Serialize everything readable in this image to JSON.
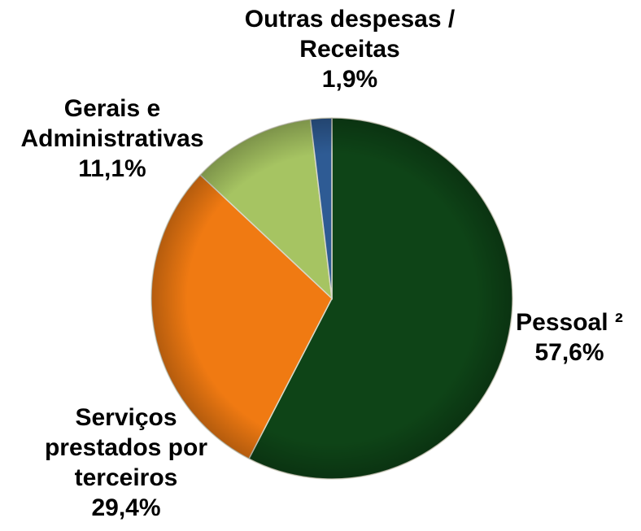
{
  "chart_data": {
    "type": "pie",
    "categories": [
      "Pessoal ²",
      "Serviços prestados por terceiros",
      "Gerais e Administrativas",
      "Outras despesas / Receitas"
    ],
    "values": [
      57.6,
      29.4,
      11.1,
      1.9
    ],
    "value_labels": [
      "57,6%",
      "29,4%",
      "11,1%",
      "1,9%"
    ],
    "colors": [
      "#0e4417",
      "#f07a12",
      "#a6c462",
      "#2e5b94"
    ]
  }
}
